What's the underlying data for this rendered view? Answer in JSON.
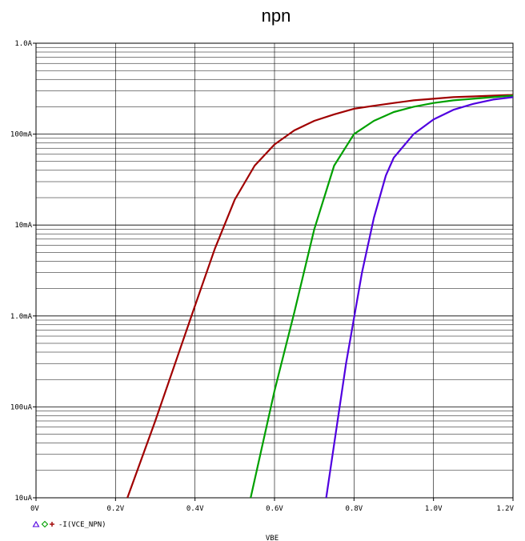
{
  "chart_data": {
    "type": "line",
    "title": "npn",
    "xlabel": "VBE",
    "ylabel": "",
    "x_scale": "linear",
    "y_scale": "log",
    "xlim": [
      0,
      1.2
    ],
    "ylim": [
      1e-05,
      1.0
    ],
    "x_ticks": [
      "0V",
      "0.2V",
      "0.4V",
      "0.6V",
      "0.8V",
      "1.0V",
      "1.2V"
    ],
    "y_ticks": [
      "10uA",
      "100uA",
      "1.0mA",
      "10mA",
      "100mA",
      "1.0A"
    ],
    "grid": true,
    "legend": {
      "text": "-I(VCE_NPN)",
      "markers": [
        "triangle",
        "diamond",
        "plus"
      ]
    },
    "series": [
      {
        "color": "#a00000",
        "x": [
          0.23,
          0.3,
          0.35,
          0.4,
          0.45,
          0.5,
          0.55,
          0.6,
          0.65,
          0.7,
          0.75,
          0.8,
          0.85,
          0.9,
          0.95,
          1.0,
          1.05,
          1.1,
          1.15,
          1.2
        ],
        "y": [
          1e-05,
          7e-05,
          0.0003,
          0.0013,
          0.0055,
          0.019,
          0.045,
          0.077,
          0.11,
          0.14,
          0.165,
          0.19,
          0.205,
          0.22,
          0.235,
          0.245,
          0.255,
          0.26,
          0.265,
          0.27
        ]
      },
      {
        "color": "#00a000",
        "x": [
          0.54,
          0.6,
          0.65,
          0.7,
          0.75,
          0.8,
          0.85,
          0.9,
          0.95,
          1.0,
          1.05,
          1.1,
          1.15,
          1.2
        ],
        "y": [
          1e-05,
          0.00015,
          0.0011,
          0.009,
          0.045,
          0.1,
          0.14,
          0.175,
          0.2,
          0.22,
          0.235,
          0.245,
          0.255,
          0.265
        ]
      },
      {
        "color": "#5000e0",
        "x": [
          0.73,
          0.78,
          0.82,
          0.85,
          0.88,
          0.9,
          0.95,
          1.0,
          1.05,
          1.1,
          1.15,
          1.2
        ],
        "y": [
          1e-05,
          0.0003,
          0.003,
          0.012,
          0.035,
          0.055,
          0.1,
          0.145,
          0.185,
          0.215,
          0.24,
          0.255
        ]
      }
    ]
  }
}
